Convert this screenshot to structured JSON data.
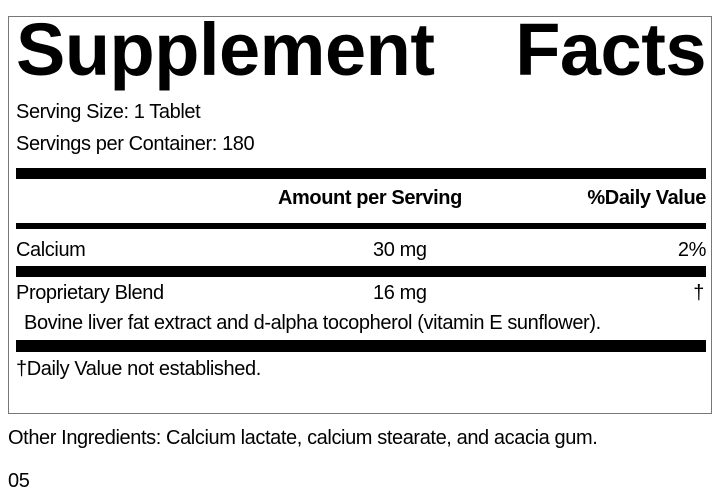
{
  "title_words": [
    "Supplement",
    "Facts"
  ],
  "serving_size": "Serving Size: 1 Tablet",
  "servings_per_container": "Servings per Container: 180",
  "header": {
    "amount": "Amount per Serving",
    "daily_value": "%Daily Value"
  },
  "rows": [
    {
      "name": "Calcium",
      "amount": "30 mg",
      "dv": "2%"
    },
    {
      "name": "Proprietary Blend",
      "amount": "16 mg",
      "dv": "†",
      "description": "Bovine liver fat extract and d-alpha tocopherol (vitamin E sunflower)."
    }
  ],
  "footnote": "†Daily Value not established.",
  "other_ingredients": "Other Ingredients: Calcium lactate, calcium stearate, and acacia gum.",
  "code": "05"
}
